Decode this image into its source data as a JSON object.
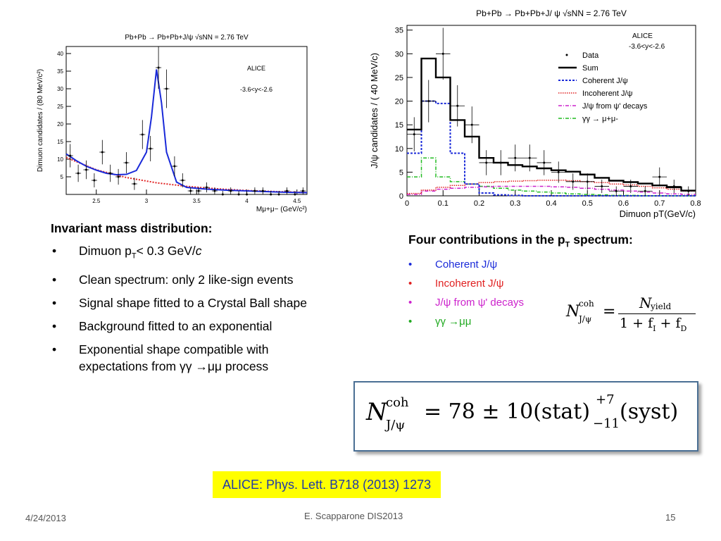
{
  "charts": [
    {
      "type": "scatter",
      "title": "Pb+Pb → Pb+Pb+J/ψ   √sNN = 2.76 TeV",
      "xlabel": "Mμ+μ− (GeV/c²)",
      "ylabel": "Dimuon candidates / (80 MeV/c²)",
      "xlim": [
        2.2,
        4.6
      ],
      "ylim": [
        0,
        42
      ],
      "xticks": [
        "2.5",
        "3",
        "3.5",
        "4",
        "4.5"
      ],
      "yticks": [
        "5",
        "10",
        "15",
        "20",
        "25",
        "30",
        "35",
        "40"
      ],
      "annotations": [
        "ALICE",
        "-3.6<y<-2.6"
      ],
      "series": [
        {
          "x": [
            2.24,
            2.32,
            2.4,
            2.48,
            2.56,
            2.64,
            2.72,
            2.8,
            2.88,
            2.96,
            3.04,
            3.12,
            3.2,
            3.28,
            3.36,
            3.44,
            3.52,
            3.6,
            3.68,
            3.76,
            3.84,
            3.92,
            4.0,
            4.08,
            4.16,
            4.24,
            4.32,
            4.4,
            4.48,
            4.56
          ],
          "y": [
            11,
            6,
            7,
            4,
            12,
            6,
            5,
            9,
            3,
            17,
            13,
            36,
            30,
            8,
            4,
            1,
            1,
            2,
            1,
            0,
            1,
            0,
            0,
            1,
            1,
            0,
            0,
            1,
            0,
            1
          ]
        },
        {
          "x": [
            2.2,
            2.3,
            2.4,
            2.5,
            2.6,
            2.7,
            2.8,
            2.9,
            3.0,
            3.05,
            3.1,
            3.15,
            3.2,
            3.3,
            3.4,
            3.6,
            3.8,
            4.0,
            4.2,
            4.4,
            4.6
          ],
          "y": [
            11.5,
            9.6,
            8.0,
            6.9,
            6.0,
            5.6,
            5.7,
            6.8,
            12.0,
            22,
            35.5,
            26,
            12,
            3.5,
            2.0,
            1.5,
            1.2,
            1.0,
            0.8,
            0.6,
            0.5
          ]
        },
        {
          "x": [
            2.2,
            2.5,
            2.8,
            3.1,
            3.4,
            3.7,
            4.0,
            4.3,
            4.6
          ],
          "y": [
            10.5,
            7.0,
            4.8,
            3.3,
            2.3,
            1.6,
            1.1,
            0.8,
            0.55
          ]
        }
      ]
    },
    {
      "type": "line",
      "title": "Pb+Pb → Pb+Pb+J/ ψ   √sNN = 2.76 TeV",
      "xlabel": "Dimuon pT(GeV/c)",
      "ylabel": "J/ψ candidates / ( 40 MeV/c)",
      "xlim": [
        0,
        0.8
      ],
      "ylim": [
        0,
        36
      ],
      "xticks": [
        "0",
        "0.1",
        "0.2",
        "0.3",
        "0.4",
        "0.5",
        "0.6",
        "0.7",
        "0.8"
      ],
      "yticks": [
        "0",
        "5",
        "10",
        "15",
        "20",
        "25",
        "30",
        "35"
      ],
      "annotations": [
        "ALICE",
        "-3.6<y<-2.6"
      ],
      "categories": [
        0.02,
        0.06,
        0.1,
        0.14,
        0.18,
        0.22,
        0.26,
        0.3,
        0.34,
        0.38,
        0.42,
        0.46,
        0.5,
        0.54,
        0.58,
        0.62,
        0.66,
        0.7,
        0.74,
        0.78
      ],
      "series": [
        {
          "name": "Data",
          "values": [
            13,
            20,
            30,
            19,
            15,
            7,
            7,
            8,
            8,
            7,
            5,
            3,
            3,
            2,
            1,
            2,
            1,
            4,
            2,
            1
          ]
        },
        {
          "name": "Sum",
          "values": [
            14,
            29,
            25,
            16,
            12.5,
            8,
            7,
            6.5,
            6.2,
            5.8,
            5.4,
            5.1,
            4.5,
            3.8,
            3.2,
            2.9,
            2.6,
            2.2,
            1.8,
            1.1
          ]
        },
        {
          "name": "Coherent J/ψ",
          "values": [
            9,
            20,
            19.5,
            9,
            2.5,
            0.6,
            0.2,
            0.1,
            0,
            0,
            0,
            0,
            0,
            0,
            0,
            0,
            0,
            0,
            0,
            0
          ]
        },
        {
          "name": "Incoherent J/ψ",
          "values": [
            0.5,
            1.2,
            1.8,
            2.2,
            2.5,
            2.8,
            3.0,
            3.1,
            3.2,
            3.3,
            3.3,
            3.2,
            3.0,
            2.8,
            2.5,
            2.3,
            2.0,
            1.7,
            1.4,
            1.0
          ]
        },
        {
          "name": "J/ψ from ψ' decays",
          "values": [
            0.3,
            1.0,
            1.4,
            1.6,
            1.8,
            1.9,
            2.0,
            2.0,
            2.0,
            2.0,
            1.9,
            1.8,
            1.6,
            1.4,
            1.2,
            1.0,
            0.8,
            0.6,
            0.4,
            0.3
          ]
        },
        {
          "name": "γγ → μ+μ-",
          "values": [
            4,
            8,
            4,
            3,
            2.5,
            2,
            1.6,
            1.2,
            1.0,
            0.8,
            0.6,
            0.4,
            0.3,
            0.2,
            0.1,
            0.1,
            0,
            0,
            0,
            0
          ]
        }
      ]
    }
  ],
  "colors": {
    "fit": "#1a2ad9",
    "bkg": "#e02020",
    "coherent": "#1a2ad9",
    "incoherent": "#e02020",
    "psiprime": "#cc22cc",
    "gg": "#22bb22",
    "refbg": "#ffff00",
    "reftext": "#1f3aa8"
  },
  "left": {
    "heading": "Invariant mass distribution:",
    "bullets": [
      {
        "a": "Dimuon p",
        "sub": "T",
        "b": "< 0.3 GeV/",
        "it": "c"
      },
      {
        "text": "Clean spectrum: only 2 like-sign events"
      },
      {
        "text": "Signal shape fitted to a Crystal Ball shape"
      },
      {
        "text": "Background fitted to an exponential"
      },
      {
        "text": "Exponential shape compatible with expectations from γγ →μμ process"
      }
    ]
  },
  "right": {
    "heading_a": "Four contributions in the p",
    "heading_sub": "T",
    "heading_b": " spectrum:",
    "items": [
      {
        "text": "Coherent J/ψ",
        "color": "#1a2ad9"
      },
      {
        "text": "Incoherent J/ψ",
        "color": "#e02020"
      },
      {
        "text": "J/ψ from ψ' decays",
        "color": "#cc22cc"
      },
      {
        "text": "γγ →μμ",
        "color": "#22aa22"
      }
    ]
  },
  "formula1": {
    "N": "N",
    "sup": "coh",
    "sub": "J/ψ",
    "num": "N",
    "numsub": "yield",
    "den": "1 + f",
    "fi": "I",
    "plus": " + f",
    "fd": "D"
  },
  "formula2": {
    "N": "N",
    "sup": "coh",
    "sub": "J/ψ",
    "mid": "= 78 ± 10(stat)",
    "up": "+7",
    "down": "−11",
    "end": "(syst)"
  },
  "reference": "ALICE: Phys. Lett. B718 (2013) 1273",
  "footer": {
    "date": "4/24/2013",
    "center": "E. Scapparone DIS2013",
    "page": "15"
  }
}
